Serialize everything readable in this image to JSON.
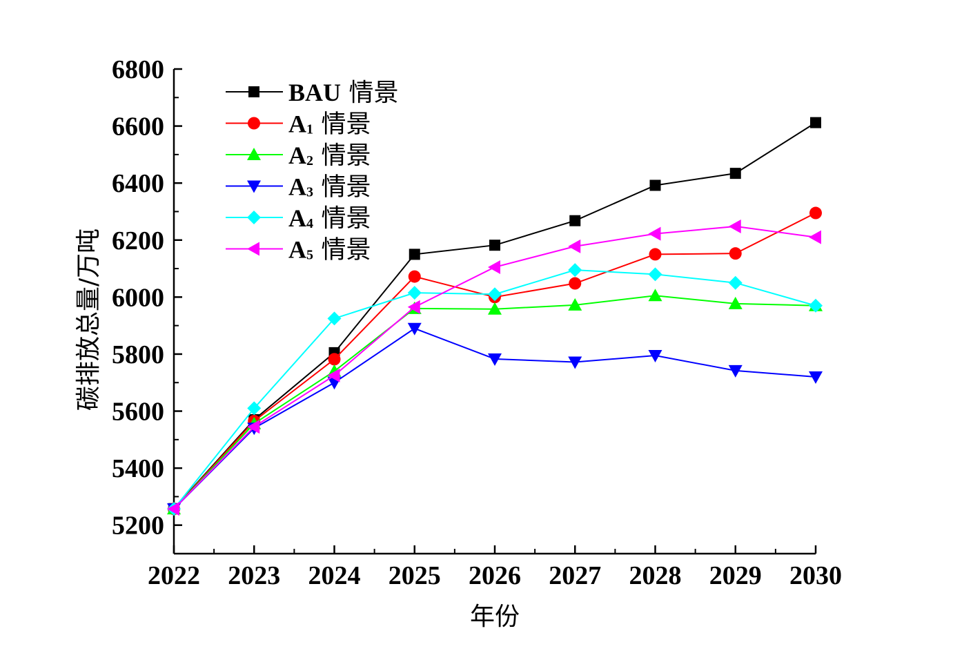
{
  "chart_data": {
    "type": "line",
    "title": "",
    "xlabel": "年份",
    "ylabel": "碳排放总量/万吨",
    "x": [
      2022,
      2023,
      2024,
      2025,
      2026,
      2027,
      2028,
      2029,
      2030
    ],
    "xlim": [
      2022,
      2030
    ],
    "ylim": [
      5100,
      6800
    ],
    "yticks": [
      5200,
      5400,
      5600,
      5800,
      6000,
      6200,
      6400,
      6600,
      6800
    ],
    "grid": false,
    "legend_position": "top-left",
    "series": [
      {
        "name": "BAU",
        "legend_suffix": "情景",
        "color": "#000000",
        "marker": "square",
        "values": [
          5258,
          5570,
          5805,
          6150,
          6182,
          6268,
          6392,
          6434,
          6612
        ]
      },
      {
        "name": "A",
        "subscript": "1",
        "legend_suffix": "情景",
        "color": "#ff0000",
        "marker": "circle",
        "values": [
          5257,
          5565,
          5782,
          6072,
          6000,
          6048,
          6150,
          6153,
          6295
        ]
      },
      {
        "name": "A",
        "subscript": "2",
        "legend_suffix": "情景",
        "color": "#00ff00",
        "marker": "triangle-up",
        "values": [
          5257,
          5556,
          5740,
          5960,
          5958,
          5972,
          6005,
          5977,
          5970
        ]
      },
      {
        "name": "A",
        "subscript": "3",
        "legend_suffix": "情景",
        "color": "#0000ff",
        "marker": "triangle-down",
        "values": [
          5257,
          5540,
          5700,
          5890,
          5783,
          5772,
          5795,
          5742,
          5720
        ]
      },
      {
        "name": "A",
        "subscript": "4",
        "legend_suffix": "情景",
        "color": "#00ffff",
        "marker": "diamond",
        "values": [
          5257,
          5610,
          5925,
          6015,
          6010,
          6095,
          6080,
          6050,
          5970
        ]
      },
      {
        "name": "A",
        "subscript": "5",
        "legend_suffix": "情景",
        "color": "#ff00ff",
        "marker": "triangle-left",
        "values": [
          5257,
          5545,
          5725,
          5965,
          6105,
          6178,
          6222,
          6248,
          6210
        ]
      }
    ]
  }
}
